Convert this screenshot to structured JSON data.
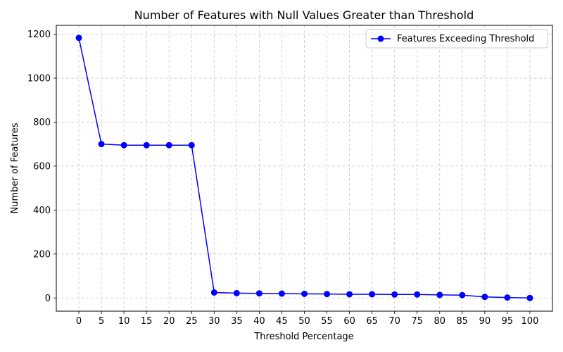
{
  "chart_data": {
    "type": "line",
    "title": "Number of Features with Null Values Greater than Threshold",
    "xlabel": "Threshold Percentage",
    "ylabel": "Number of Features",
    "x": [
      0,
      5,
      10,
      15,
      20,
      25,
      30,
      35,
      40,
      45,
      50,
      55,
      60,
      65,
      70,
      75,
      80,
      85,
      90,
      95,
      100
    ],
    "series": [
      {
        "name": "Features Exceeding Threshold",
        "color": "#0000ff",
        "marker": "circle",
        "values": [
          1183,
          700,
          695,
          695,
          695,
          695,
          25,
          22,
          21,
          20,
          19,
          18,
          17,
          17,
          16,
          16,
          14,
          13,
          5,
          2,
          0
        ]
      }
    ],
    "xticks": [
      "0",
      "5",
      "10",
      "15",
      "20",
      "25",
      "30",
      "35",
      "40",
      "45",
      "50",
      "55",
      "60",
      "65",
      "70",
      "75",
      "80",
      "85",
      "90",
      "95",
      "100"
    ],
    "yticks": [
      "0",
      "200",
      "400",
      "600",
      "800",
      "1000",
      "1200"
    ],
    "xlim": [
      -5,
      105
    ],
    "ylim": [
      -60,
      1240
    ],
    "grid": true,
    "grid_style": "dashed",
    "legend_position": "top-right"
  }
}
